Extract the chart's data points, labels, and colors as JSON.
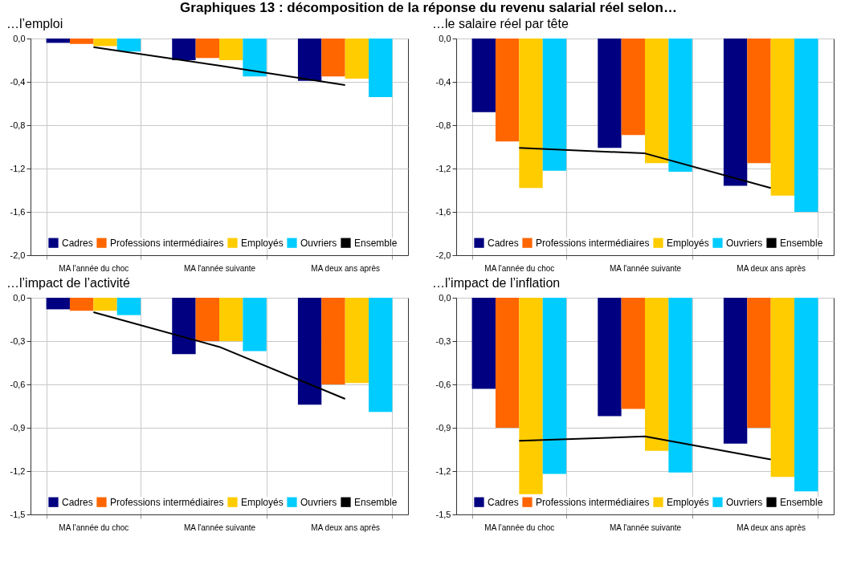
{
  "chart_data": [
    {
      "type": "bar",
      "title": "Graphiques 13 : décomposition de la réponse du revenu salarial réel selon…",
      "subtitle": "…l’emploi",
      "categories": [
        "MA l'année du choc",
        "MA l'année suivante",
        "MA deux ans après"
      ],
      "series": [
        {
          "name": "Cadres",
          "color": "#000080",
          "values": [
            -0.04,
            -0.2,
            -0.39
          ]
        },
        {
          "name": "Professions intermédiaires",
          "color": "#ff6600",
          "values": [
            -0.05,
            -0.18,
            -0.35
          ]
        },
        {
          "name": "Employés",
          "color": "#ffcc00",
          "values": [
            -0.07,
            -0.2,
            -0.37
          ]
        },
        {
          "name": "Ouvriers",
          "color": "#00ccff",
          "values": [
            -0.12,
            -0.35,
            -0.54
          ]
        },
        {
          "name": "Ensemble",
          "type": "line",
          "color": "#000000",
          "values": [
            -0.08,
            -0.25,
            -0.43
          ]
        }
      ],
      "ylim": [
        -2.0,
        0.0
      ],
      "yticks": [
        {
          "value": 0,
          "label": "0,0"
        },
        {
          "value": -0.4,
          "label": "-0,4"
        },
        {
          "value": -0.8,
          "label": "-0,8"
        },
        {
          "value": -1.2,
          "label": "-1,2"
        },
        {
          "value": -1.6,
          "label": "-1,6"
        },
        {
          "value": -2.0,
          "label": "-2,0"
        }
      ],
      "grid": true,
      "legend": "bottom"
    },
    {
      "type": "bar",
      "subtitle": "…le salaire réel par tête",
      "categories": [
        "MA l'année du choc",
        "MA l'année suivante",
        "MA deux ans après"
      ],
      "series": [
        {
          "name": "Cadres",
          "color": "#000080",
          "values": [
            -0.68,
            -1.01,
            -1.36
          ]
        },
        {
          "name": "Professions intermédiaires",
          "color": "#ff6600",
          "values": [
            -0.95,
            -0.89,
            -1.15
          ]
        },
        {
          "name": "Employés",
          "color": "#ffcc00",
          "values": [
            -1.38,
            -1.15,
            -1.45
          ]
        },
        {
          "name": "Ouvriers",
          "color": "#00ccff",
          "values": [
            -1.22,
            -1.23,
            -1.6
          ]
        },
        {
          "name": "Ensemble",
          "type": "line",
          "color": "#000000",
          "values": [
            -1.01,
            -1.06,
            -1.38
          ]
        }
      ],
      "ylim": [
        -2.0,
        0.0
      ],
      "yticks": [
        {
          "value": 0,
          "label": "0,0"
        },
        {
          "value": -0.4,
          "label": "-0,4"
        },
        {
          "value": -0.8,
          "label": "-0,8"
        },
        {
          "value": -1.2,
          "label": "-1,2"
        },
        {
          "value": -1.6,
          "label": "-1,6"
        },
        {
          "value": -2.0,
          "label": "-2,0"
        }
      ],
      "grid": true,
      "legend": "bottom"
    },
    {
      "type": "bar",
      "subtitle": "…l’impact de l’activité",
      "categories": [
        "MA l'année du choc",
        "MA l'année suivante",
        "MA deux ans après"
      ],
      "series": [
        {
          "name": "Cadres",
          "color": "#000080",
          "values": [
            -0.08,
            -0.39,
            -0.74
          ]
        },
        {
          "name": "Professions intermédiaires",
          "color": "#ff6600",
          "values": [
            -0.09,
            -0.3,
            -0.6
          ]
        },
        {
          "name": "Employés",
          "color": "#ffcc00",
          "values": [
            -0.09,
            -0.3,
            -0.59
          ]
        },
        {
          "name": "Ouvriers",
          "color": "#00ccff",
          "values": [
            -0.12,
            -0.37,
            -0.79
          ]
        },
        {
          "name": "Ensemble",
          "type": "line",
          "color": "#000000",
          "values": [
            -0.1,
            -0.34,
            -0.7
          ]
        }
      ],
      "ylim": [
        -1.5,
        0.0
      ],
      "yticks": [
        {
          "value": 0,
          "label": "0,0"
        },
        {
          "value": -0.3,
          "label": "-0,3"
        },
        {
          "value": -0.6,
          "label": "-0,6"
        },
        {
          "value": -0.9,
          "label": "-0,9"
        },
        {
          "value": -1.2,
          "label": "-1,2"
        },
        {
          "value": -1.5,
          "label": "-1,5"
        }
      ],
      "grid": true,
      "legend": "bottom"
    },
    {
      "type": "bar",
      "subtitle": "…l’impact de l’inflation",
      "categories": [
        "MA l'année du choc",
        "MA l'année suivante",
        "MA deux ans après"
      ],
      "series": [
        {
          "name": "Cadres",
          "color": "#000080",
          "values": [
            -0.63,
            -0.82,
            -1.01
          ]
        },
        {
          "name": "Professions intermédiaires",
          "color": "#ff6600",
          "values": [
            -0.9,
            -0.77,
            -0.9
          ]
        },
        {
          "name": "Employés",
          "color": "#ffcc00",
          "values": [
            -1.36,
            -1.06,
            -1.24
          ]
        },
        {
          "name": "Ouvriers",
          "color": "#00ccff",
          "values": [
            -1.22,
            -1.21,
            -1.34
          ]
        },
        {
          "name": "Ensemble",
          "type": "line",
          "color": "#000000",
          "values": [
            -0.99,
            -0.96,
            -1.12
          ]
        }
      ],
      "ylim": [
        -1.5,
        0.0
      ],
      "yticks": [
        {
          "value": 0,
          "label": "0,0"
        },
        {
          "value": -0.3,
          "label": "-0,3"
        },
        {
          "value": -0.6,
          "label": "-0,6"
        },
        {
          "value": -0.9,
          "label": "-0,9"
        },
        {
          "value": -1.2,
          "label": "-1,2"
        },
        {
          "value": -1.5,
          "label": "-1,5"
        }
      ],
      "grid": true,
      "legend": "bottom"
    }
  ]
}
